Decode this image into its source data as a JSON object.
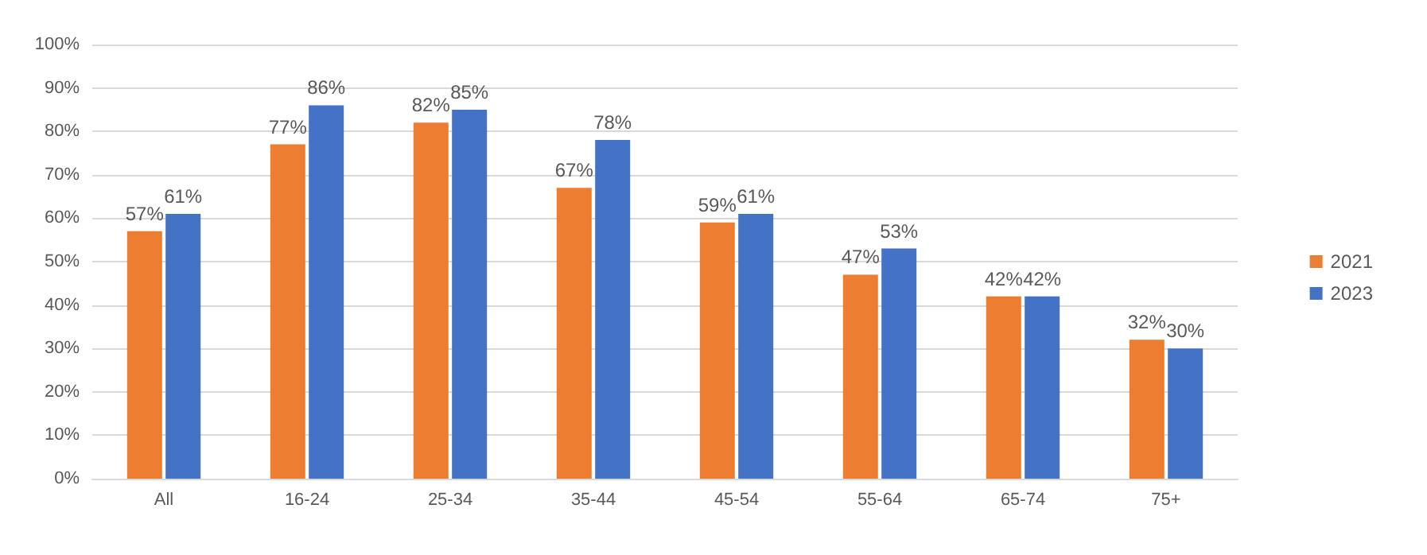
{
  "chart_data": {
    "type": "bar",
    "categories": [
      "All",
      "16-24",
      "25-34",
      "35-44",
      "45-54",
      "55-64",
      "65-74",
      "75+"
    ],
    "series": [
      {
        "name": "2021",
        "color": "#ed7d31",
        "values": [
          57,
          77,
          82,
          67,
          59,
          47,
          42,
          32
        ],
        "value_labels": [
          "57%",
          "77%",
          "82%",
          "67%",
          "59%",
          "47%",
          "42%",
          "32%"
        ]
      },
      {
        "name": "2023",
        "color": "#4472c4",
        "values": [
          61,
          86,
          85,
          78,
          61,
          53,
          42,
          30
        ],
        "value_labels": [
          "61%",
          "86%",
          "85%",
          "78%",
          "61%",
          "53%",
          "42%",
          "30%"
        ]
      }
    ],
    "ylim": [
      0,
      100
    ],
    "yticks": [
      {
        "value": 0,
        "label": "0%"
      },
      {
        "value": 10,
        "label": "10%"
      },
      {
        "value": 20,
        "label": "20%"
      },
      {
        "value": 30,
        "label": "30%"
      },
      {
        "value": 40,
        "label": "40%"
      },
      {
        "value": 50,
        "label": "50%"
      },
      {
        "value": 60,
        "label": "60%"
      },
      {
        "value": 70,
        "label": "70%"
      },
      {
        "value": 80,
        "label": "80%"
      },
      {
        "value": 90,
        "label": "90%"
      },
      {
        "value": 100,
        "label": "100%"
      }
    ],
    "grid": "y",
    "legend": "right"
  }
}
